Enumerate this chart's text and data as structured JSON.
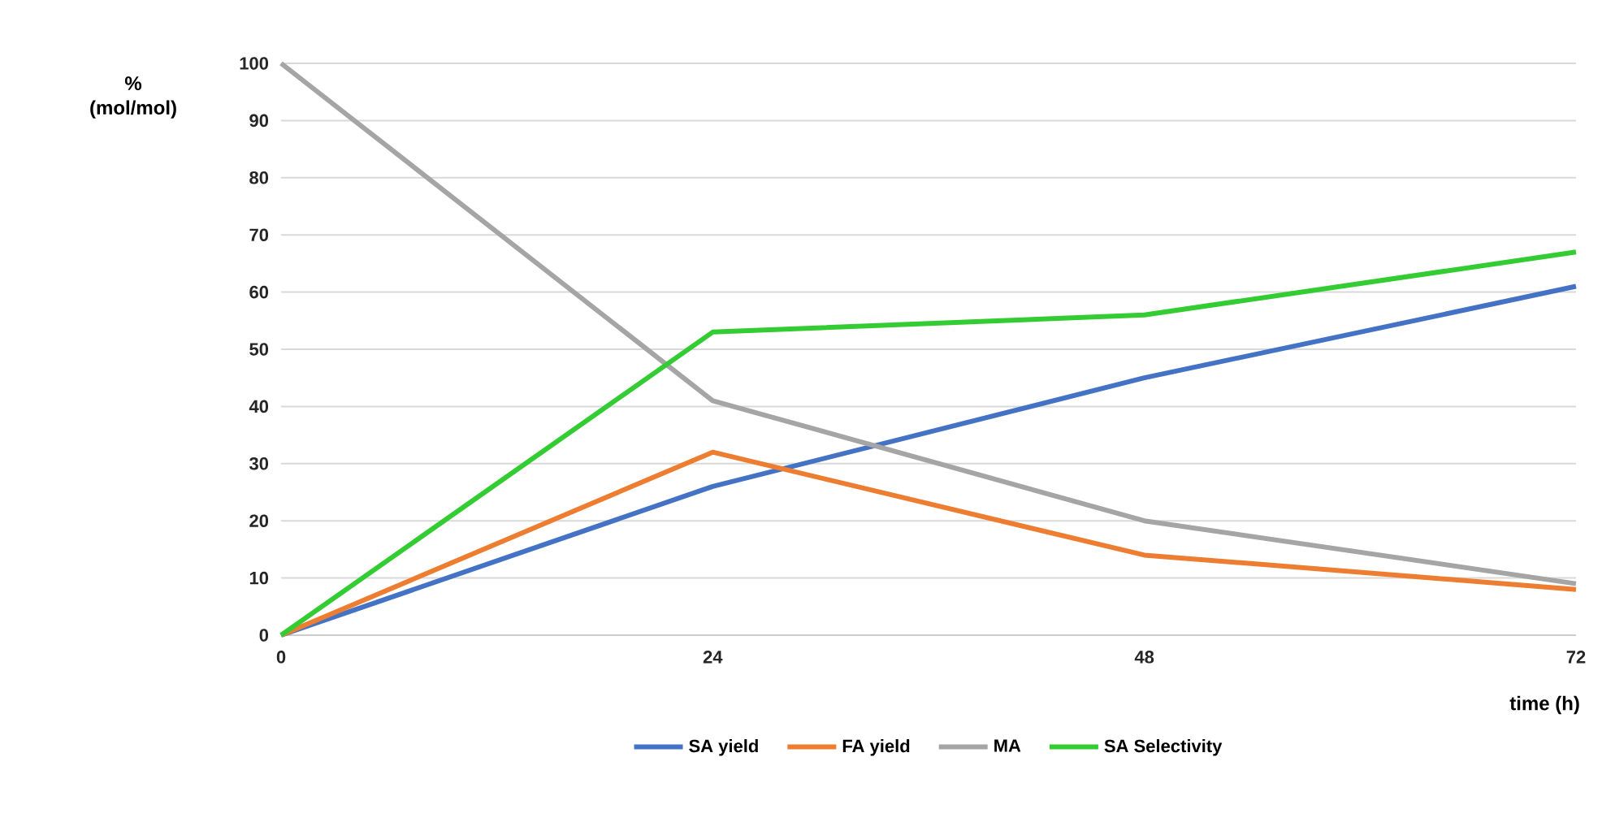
{
  "chart_data": {
    "type": "line",
    "xlabel": "time (h)",
    "ylabel": "% (mol/mol)",
    "x": [
      0,
      24,
      48,
      72
    ],
    "xlim": [
      0,
      72
    ],
    "xticks": [
      0,
      24,
      48,
      72
    ],
    "ylim": [
      0,
      100
    ],
    "yticks": [
      0,
      10,
      20,
      30,
      40,
      50,
      60,
      70,
      80,
      90,
      100
    ],
    "grid": "y",
    "legend": "bottom",
    "marker": "none",
    "line_style": "solid",
    "series": [
      {
        "name": "SA yield",
        "color": "#4472c4",
        "values": [
          0,
          26,
          45,
          61
        ]
      },
      {
        "name": "FA yield",
        "color": "#ed7d31",
        "values": [
          0,
          32,
          14,
          8
        ]
      },
      {
        "name": "MA",
        "color": "#a5a5a5",
        "values": [
          100,
          41,
          20,
          9
        ]
      },
      {
        "name": "SA Selectivity",
        "color": "#33cc33",
        "values": [
          0,
          53,
          56,
          67
        ]
      }
    ]
  }
}
